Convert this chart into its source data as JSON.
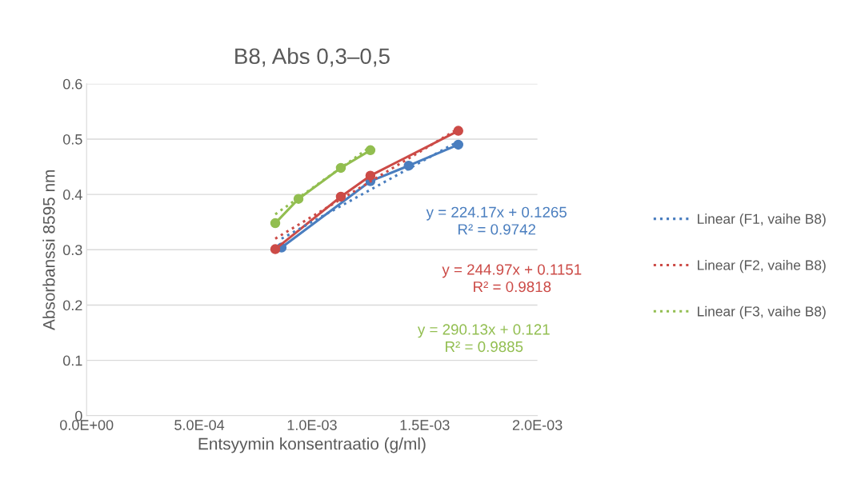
{
  "chart_data": {
    "type": "line",
    "title": "B8, Abs 0,3–0,5",
    "xlabel": "Entsyymin konsentraatio (g/ml)",
    "ylabel": "Absorbanssi 8595 nm",
    "xlim": [
      0,
      0.002
    ],
    "xticks": [
      {
        "value": 0,
        "label": "0.0E+00"
      },
      {
        "value": 0.0005,
        "label": "5.0E-04"
      },
      {
        "value": 0.001,
        "label": "1.0E-03"
      },
      {
        "value": 0.0015,
        "label": "1.5E-03"
      },
      {
        "value": 0.002,
        "label": "2.0E-03"
      }
    ],
    "ylim": [
      0,
      0.6
    ],
    "yticks": [
      0,
      0.1,
      0.2,
      0.3,
      0.4,
      0.5,
      0.6
    ],
    "grid": "y",
    "legend": "right",
    "marker": "circle",
    "series": [
      {
        "color": "#4a7ebf",
        "x": [
          0.000865,
          0.001259,
          0.001429,
          0.001649
        ],
        "values": [
          0.304,
          0.424,
          0.452,
          0.49
        ]
      },
      {
        "color": "#cc4b47",
        "x": [
          0.000837,
          0.001128,
          0.001259,
          0.001649
        ],
        "values": [
          0.301,
          0.396,
          0.434,
          0.515
        ]
      },
      {
        "color": "#92be50",
        "x": [
          0.000837,
          0.00094,
          0.001128,
          0.001259
        ],
        "values": [
          0.348,
          0.392,
          0.448,
          0.48
        ]
      },
      {
        "name": "Linear (F1, vaihe B8)",
        "type": "line",
        "marker": "none",
        "line_style": "dotted",
        "color": "#4a7ebf",
        "x": [
          0.000865,
          0.001649
        ],
        "values": [
          0.32,
          0.496
        ]
      },
      {
        "name": "Linear (F2, vaihe B8)",
        "type": "line",
        "marker": "none",
        "line_style": "dotted",
        "color": "#cc4b47",
        "x": [
          0.000837,
          0.001649
        ],
        "values": [
          0.32,
          0.519
        ]
      },
      {
        "name": "Linear (F3, vaihe B8)",
        "type": "line",
        "marker": "none",
        "line_style": "dotted",
        "color": "#92be50",
        "x": [
          0.000837,
          0.001259
        ],
        "values": [
          0.364,
          0.486
        ]
      }
    ],
    "annotations": [
      "y = 224.17x + 0.1265\nR² = 0.9742",
      "y = 244.97x + 0.1151\nR² = 0.9818",
      "y = 290.13x + 0.121\nR² = 0.9885"
    ]
  }
}
